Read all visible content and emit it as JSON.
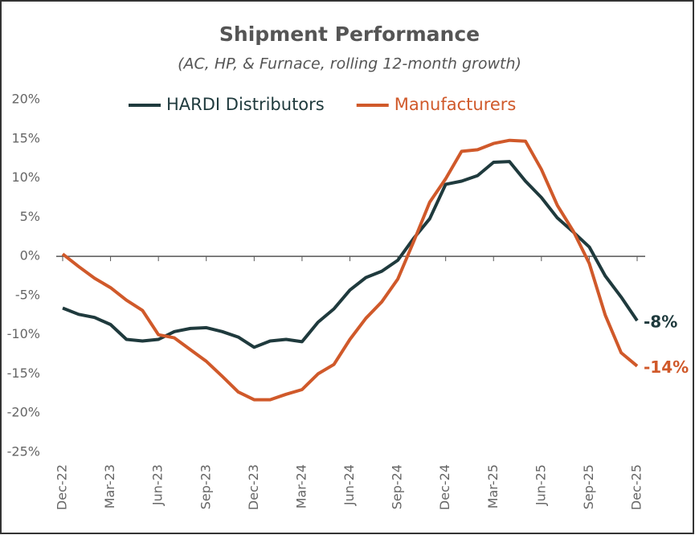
{
  "chart_data": {
    "type": "line",
    "title": "Shipment Performance",
    "subtitle": "(AC, HP, & Furnace, rolling 12-month growth)",
    "categories": [
      "Dec-22",
      null,
      null,
      "Mar-23",
      null,
      null,
      "Jun-23",
      null,
      null,
      "Sep-23",
      null,
      null,
      "Dec-23",
      null,
      null,
      "Mar-24",
      null,
      null,
      "Jun-24",
      null,
      null,
      "Sep-24",
      null,
      null,
      "Dec-24",
      null,
      null,
      "Mar-25",
      null,
      null,
      "Jun-25",
      null,
      null,
      "Sep-25",
      null,
      null,
      "Dec-25"
    ],
    "series": [
      {
        "name": "HARDI Distributors",
        "color": "#1f3a3d",
        "values": [
          -6.6,
          -7.4,
          -7.8,
          -8.7,
          -10.6,
          -10.8,
          -10.6,
          -9.6,
          -9.2,
          -9.1,
          -9.6,
          -10.3,
          -11.6,
          -10.8,
          -10.6,
          -10.9,
          -8.4,
          -6.7,
          -4.3,
          -2.7,
          -1.9,
          -0.5,
          2.3,
          4.8,
          9.2,
          9.6,
          10.3,
          12.0,
          12.1,
          9.6,
          7.5,
          4.9,
          3.1,
          1.2,
          -2.5,
          -5.2,
          -8.2
        ],
        "value_labels": [
          null,
          null,
          null,
          null,
          null,
          null,
          null,
          null,
          null,
          null,
          null,
          null,
          null,
          null,
          null,
          null,
          null,
          null,
          null,
          null,
          null,
          null,
          null,
          null,
          null,
          null,
          null,
          null,
          null,
          null,
          null,
          null,
          null,
          null,
          null,
          null,
          "-8%"
        ]
      },
      {
        "name": "Manufacturers",
        "color": "#d0592a",
        "values": [
          0.3,
          -1.3,
          -2.8,
          -4.0,
          -5.6,
          -6.9,
          -10.0,
          -10.4,
          -11.9,
          -13.4,
          -15.3,
          -17.3,
          -18.3,
          -18.3,
          -17.6,
          -17.0,
          -15.0,
          -13.8,
          -10.6,
          -7.9,
          -5.8,
          -2.9,
          1.9,
          6.9,
          9.9,
          13.4,
          13.6,
          14.4,
          14.8,
          14.7,
          11.1,
          6.5,
          3.2,
          -0.9,
          -7.5,
          -12.3,
          -14.0
        ],
        "value_labels": [
          null,
          null,
          null,
          null,
          null,
          null,
          null,
          null,
          null,
          null,
          null,
          null,
          null,
          null,
          null,
          null,
          null,
          null,
          null,
          null,
          null,
          null,
          null,
          null,
          null,
          null,
          null,
          null,
          null,
          null,
          null,
          null,
          null,
          null,
          null,
          null,
          "-14%"
        ]
      }
    ],
    "ylim": [
      -25,
      20
    ],
    "yticks": [
      {
        "value": -25,
        "label": "-25%"
      },
      {
        "value": -20,
        "label": "-20%"
      },
      {
        "value": -15,
        "label": "-15%"
      },
      {
        "value": -10,
        "label": "-10%"
      },
      {
        "value": -5,
        "label": "-5%"
      },
      {
        "value": 0,
        "label": "0%"
      },
      {
        "value": 5,
        "label": "5%"
      },
      {
        "value": 10,
        "label": "10%"
      },
      {
        "value": 15,
        "label": "15%"
      },
      {
        "value": 20,
        "label": "20%"
      }
    ],
    "grid": false,
    "legend": "top"
  }
}
